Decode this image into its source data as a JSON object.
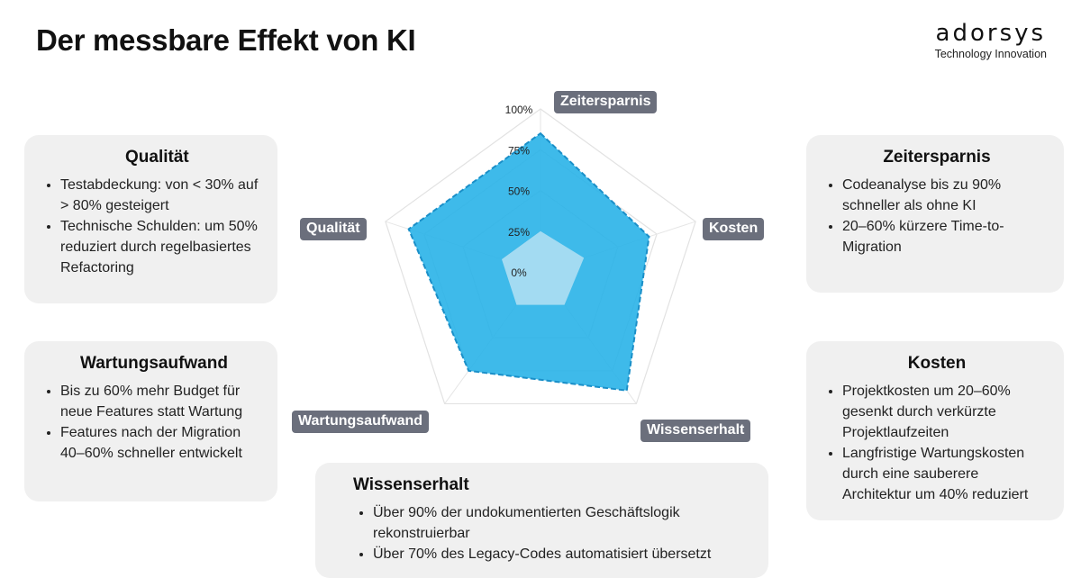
{
  "header": {
    "title": "Der messbare Effekt von KI",
    "logo_word": "adorsys",
    "logo_sub": "Technology Innovation"
  },
  "cards": {
    "qualitaet": {
      "title": "Qualität",
      "items": [
        "Testabdeckung: von < 30% auf > 80% gesteigert",
        "Technische Schulden: um 50% reduziert durch regelbasiertes Refactoring"
      ]
    },
    "wartung": {
      "title": "Wartungsaufwand",
      "items": [
        "Bis zu 60% mehr Budget für neue Features statt Wartung",
        "Features nach der Migration 40–60% schneller entwickelt"
      ]
    },
    "zeit": {
      "title": "Zeitersparnis",
      "items": [
        "Codeanalyse bis zu 90% schneller als ohne KI",
        "20–60% kürzere Time-to-Migration"
      ]
    },
    "kosten": {
      "title": "Kosten",
      "items": [
        "Projektkosten um 20–60% gesenkt durch verkürzte Projektlaufzeiten",
        "Langfristige Wartungskosten durch eine sauberere Architektur um 40% reduziert"
      ]
    },
    "wissen": {
      "title": "Wissenserhalt",
      "items": [
        "Über 90% der undokumentierten Geschäftslogik rekonstruierbar",
        "Über 70% des Legacy-Codes automatisiert übersetzt"
      ]
    }
  },
  "chart_data": {
    "type": "radar",
    "axes": [
      "Zeitersparnis",
      "Kosten",
      "Wissenserhalt",
      "Wartungsaufwand",
      "Qualität"
    ],
    "tick_labels": [
      "0%",
      "25%",
      "50%",
      "75%",
      "100%"
    ],
    "range": [
      0,
      100
    ],
    "series": [
      {
        "values": [
          85,
          70,
          90,
          75,
          85
        ],
        "color": "#29b2e8"
      },
      {
        "values": [
          25,
          28,
          25,
          25,
          25
        ],
        "color": "#a9dcf2"
      }
    ],
    "grid": true
  },
  "colors": {
    "card_bg": "#f0f0f0",
    "label_bg": "#6b6f7c",
    "accent": "#29b2e8"
  }
}
